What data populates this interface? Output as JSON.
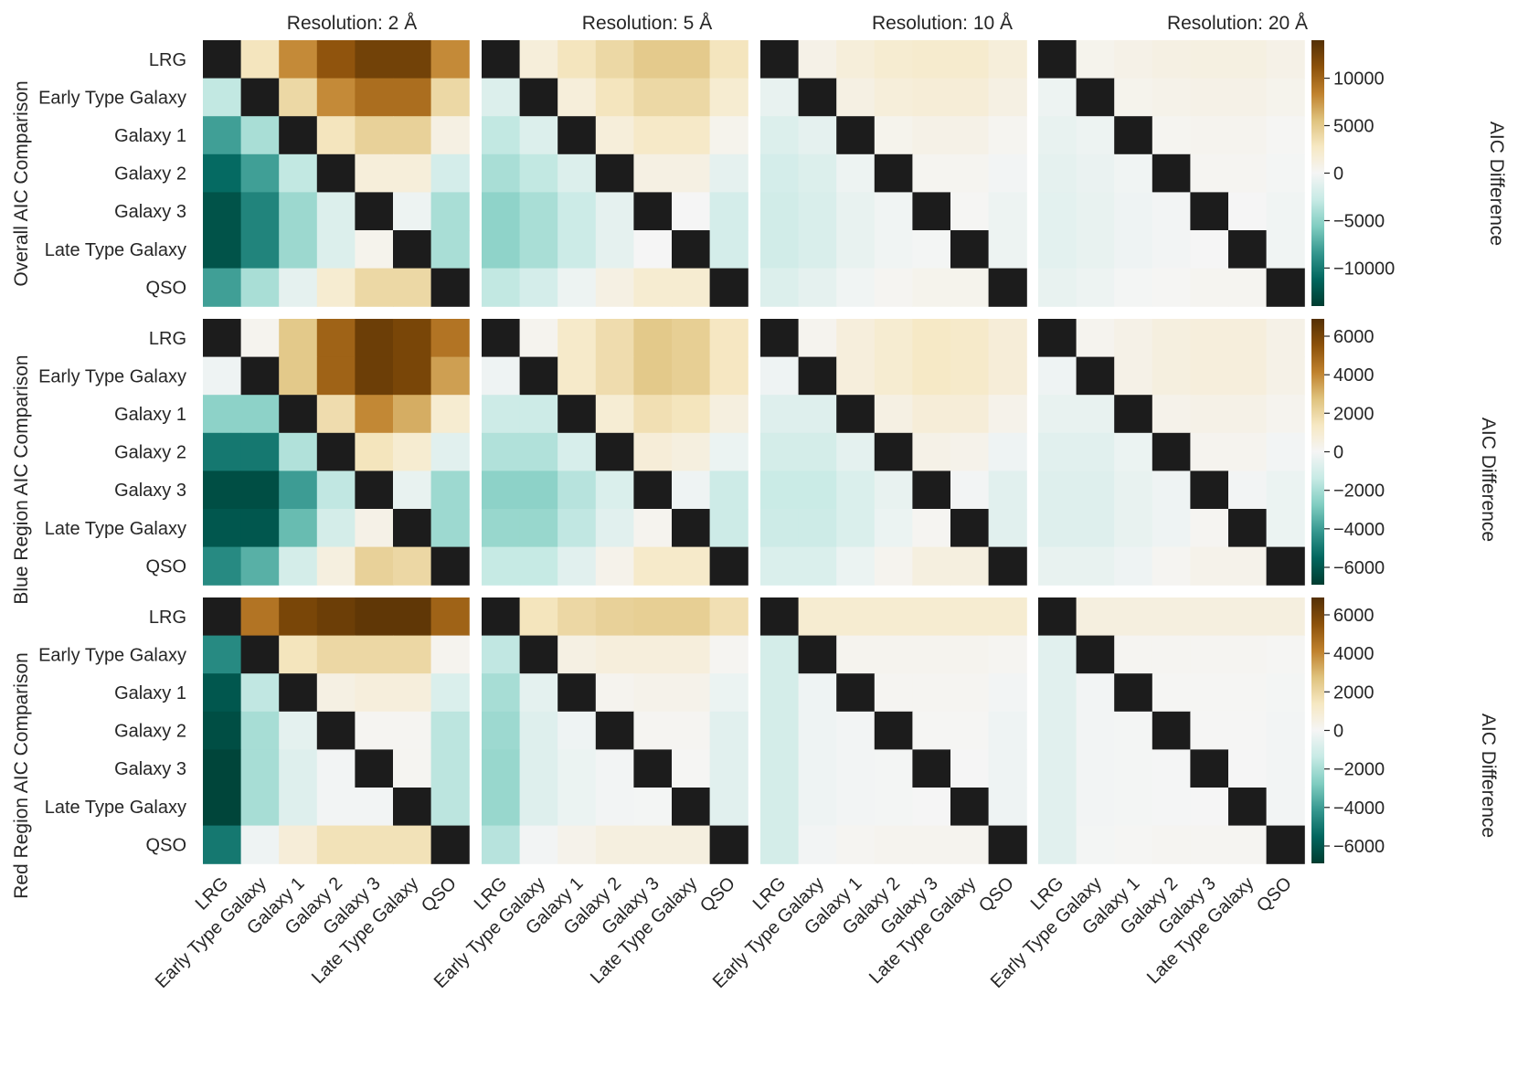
{
  "chart_data": {
    "type": "heatmap",
    "categories": [
      "LRG",
      "Early Type Galaxy",
      "Galaxy 1",
      "Galaxy 2",
      "Galaxy 3",
      "Late Type Galaxy",
      "QSO"
    ],
    "column_titles": [
      "Resolution: 2 Å",
      "Resolution: 5 Å",
      "Resolution: 10 Å",
      "Resolution: 20 Å"
    ],
    "row_titles": [
      "Overall AIC Comparison",
      "Blue Region AIC Comparison",
      "Red Region AIC Comparison"
    ],
    "colorbar_label": "AIC Difference",
    "colormap": "BrBG_r",
    "diagonal_color": "#1c1c1c",
    "colorbars": [
      {
        "vmin": -14000,
        "vmax": 14000,
        "ticks": [
          "10000",
          "5000",
          "0",
          "−5000",
          "−10000"
        ],
        "tick_values": [
          10000,
          5000,
          0,
          -5000,
          -10000
        ]
      },
      {
        "vmin": -6900,
        "vmax": 6900,
        "ticks": [
          "6000",
          "4000",
          "2000",
          "0",
          "−2000",
          "−4000",
          "−6000"
        ],
        "tick_values": [
          6000,
          4000,
          2000,
          0,
          -2000,
          -4000,
          -6000
        ]
      },
      {
        "vmin": -6900,
        "vmax": 6900,
        "ticks": [
          "6000",
          "4000",
          "2000",
          "0",
          "−2000",
          "−4000",
          "−6000"
        ],
        "tick_values": [
          6000,
          4000,
          2000,
          0,
          -2000,
          -4000,
          -6000
        ]
      }
    ],
    "matrices": [
      [
        [
          [
            0,
            3000,
            8000,
            11000,
            12500,
            12500,
            8000
          ],
          [
            -3000,
            0,
            4000,
            8000,
            9500,
            9500,
            4000
          ],
          [
            -8000,
            -4000,
            0,
            3000,
            4500,
            4500,
            1000
          ],
          [
            -11000,
            -8000,
            -3000,
            0,
            1500,
            1500,
            -2000
          ],
          [
            -12500,
            -9500,
            -4500,
            -1500,
            0,
            -500,
            -4000
          ],
          [
            -12500,
            -9500,
            -4500,
            -1500,
            500,
            0,
            -4000
          ],
          [
            -8000,
            -4000,
            -1000,
            2000,
            4000,
            4000,
            0
          ]
        ],
        [
          [
            0,
            1500,
            3000,
            4000,
            5000,
            5000,
            3000
          ],
          [
            -1500,
            0,
            1500,
            3000,
            4000,
            4000,
            2000
          ],
          [
            -3000,
            -1500,
            0,
            1500,
            2500,
            2500,
            500
          ],
          [
            -4000,
            -3000,
            -1500,
            0,
            1000,
            1000,
            -1000
          ],
          [
            -5000,
            -4000,
            -2500,
            -1000,
            0,
            0,
            -2000
          ],
          [
            -5000,
            -4000,
            -2500,
            -1000,
            0,
            0,
            -2000
          ],
          [
            -3000,
            -2000,
            -500,
            1000,
            2000,
            2000,
            0
          ]
        ],
        [
          [
            0,
            800,
            1500,
            2000,
            2200,
            2200,
            1500
          ],
          [
            -800,
            0,
            1000,
            1500,
            1700,
            1700,
            1000
          ],
          [
            -1500,
            -1000,
            0,
            500,
            800,
            800,
            300
          ],
          [
            -2000,
            -1500,
            -500,
            0,
            300,
            300,
            -200
          ],
          [
            -2200,
            -1700,
            -800,
            -300,
            0,
            100,
            -500
          ],
          [
            -2200,
            -1700,
            -800,
            -300,
            -100,
            0,
            -500
          ],
          [
            -1500,
            -1000,
            -300,
            200,
            500,
            500,
            0
          ]
        ],
        [
          [
            0,
            500,
            800,
            1000,
            1100,
            1100,
            800
          ],
          [
            -500,
            0,
            500,
            700,
            800,
            800,
            500
          ],
          [
            -800,
            -500,
            0,
            300,
            400,
            400,
            100
          ],
          [
            -1000,
            -700,
            -300,
            0,
            200,
            200,
            -100
          ],
          [
            -1100,
            -800,
            -400,
            -200,
            0,
            0,
            -300
          ],
          [
            -1100,
            -800,
            -400,
            -200,
            0,
            0,
            -300
          ],
          [
            -800,
            -500,
            -100,
            100,
            300,
            300,
            0
          ]
        ]
      ],
      [
        [
          [
            0,
            200,
            2500,
            5000,
            6300,
            6000,
            4500
          ],
          [
            -200,
            0,
            2500,
            5000,
            6300,
            6000,
            3500
          ],
          [
            -2500,
            -2500,
            0,
            1800,
            4000,
            3200,
            1000
          ],
          [
            -5000,
            -5000,
            -1800,
            0,
            1500,
            1000,
            -600
          ],
          [
            -6300,
            -6300,
            -4000,
            -1500,
            0,
            -400,
            -2200
          ],
          [
            -6000,
            -6000,
            -3200,
            -1000,
            400,
            0,
            -2200
          ],
          [
            -4500,
            -3500,
            -1000,
            600,
            2200,
            2000,
            0
          ]
        ],
        [
          [
            0,
            200,
            1200,
            1800,
            2500,
            2300,
            1400
          ],
          [
            -200,
            0,
            1200,
            1800,
            2500,
            2300,
            1400
          ],
          [
            -1200,
            -1200,
            0,
            900,
            1700,
            1500,
            600
          ],
          [
            -1800,
            -1800,
            -900,
            0,
            800,
            600,
            -300
          ],
          [
            -2500,
            -2500,
            -1700,
            -800,
            0,
            -200,
            -1200
          ],
          [
            -2300,
            -2300,
            -1500,
            -600,
            200,
            0,
            -1200
          ],
          [
            -1400,
            -1400,
            -600,
            300,
            1200,
            1200,
            0
          ]
        ],
        [
          [
            0,
            200,
            700,
            1000,
            1300,
            1200,
            800
          ],
          [
            -200,
            0,
            700,
            1000,
            1300,
            1200,
            800
          ],
          [
            -700,
            -700,
            0,
            500,
            800,
            800,
            300
          ],
          [
            -1000,
            -1000,
            -500,
            0,
            400,
            300,
            -200
          ],
          [
            -1300,
            -1300,
            -800,
            -400,
            0,
            -100,
            -600
          ],
          [
            -1200,
            -1200,
            -800,
            -300,
            100,
            0,
            -600
          ],
          [
            -800,
            -800,
            -300,
            200,
            600,
            600,
            0
          ]
        ],
        [
          [
            0,
            200,
            400,
            600,
            700,
            700,
            400
          ],
          [
            -200,
            0,
            400,
            600,
            700,
            700,
            400
          ],
          [
            -400,
            -400,
            0,
            300,
            400,
            400,
            200
          ],
          [
            -600,
            -600,
            -300,
            0,
            200,
            200,
            -100
          ],
          [
            -700,
            -700,
            -400,
            -200,
            0,
            -100,
            -300
          ],
          [
            -700,
            -700,
            -400,
            -200,
            100,
            0,
            -300
          ],
          [
            -400,
            -400,
            -200,
            100,
            300,
            300,
            0
          ]
        ]
      ],
      [
        [
          [
            0,
            4500,
            6000,
            6300,
            6600,
            6600,
            5000
          ],
          [
            -4500,
            0,
            1500,
            2000,
            2000,
            2000,
            200
          ],
          [
            -6000,
            -1500,
            0,
            500,
            700,
            700,
            -800
          ],
          [
            -6300,
            -2000,
            -500,
            0,
            100,
            100,
            -1600
          ],
          [
            -6600,
            -2000,
            -700,
            -100,
            0,
            100,
            -1600
          ],
          [
            -6600,
            -2000,
            -700,
            -100,
            -100,
            0,
            -1600
          ],
          [
            -5000,
            -200,
            800,
            1600,
            1600,
            1600,
            0
          ]
        ],
        [
          [
            0,
            1500,
            2000,
            2200,
            2300,
            2300,
            1700
          ],
          [
            -1500,
            0,
            500,
            700,
            700,
            700,
            100
          ],
          [
            -2000,
            -500,
            0,
            200,
            300,
            300,
            -300
          ],
          [
            -2200,
            -700,
            -200,
            0,
            100,
            100,
            -600
          ],
          [
            -2300,
            -700,
            -300,
            -100,
            0,
            50,
            -600
          ],
          [
            -2300,
            -700,
            -300,
            -100,
            -50,
            0,
            -600
          ],
          [
            -1700,
            -100,
            300,
            600,
            600,
            600,
            0
          ]
        ],
        [
          [
            0,
            1000,
            1000,
            1000,
            1000,
            1000,
            1000
          ],
          [
            -1000,
            0,
            200,
            200,
            200,
            200,
            100
          ],
          [
            -1000,
            -200,
            0,
            100,
            100,
            100,
            -100
          ],
          [
            -1000,
            -200,
            -100,
            0,
            50,
            50,
            -200
          ],
          [
            -1000,
            -200,
            -100,
            -50,
            0,
            0,
            -200
          ],
          [
            -1000,
            -200,
            -100,
            -50,
            0,
            0,
            -200
          ],
          [
            -1000,
            -100,
            100,
            200,
            200,
            200,
            0
          ]
        ],
        [
          [
            0,
            600,
            600,
            600,
            600,
            600,
            600
          ],
          [
            -600,
            0,
            100,
            100,
            100,
            100,
            50
          ],
          [
            -600,
            -100,
            0,
            50,
            50,
            50,
            -50
          ],
          [
            -600,
            -100,
            -50,
            0,
            20,
            20,
            -100
          ],
          [
            -600,
            -100,
            -50,
            -20,
            0,
            0,
            -100
          ],
          [
            -600,
            -100,
            -50,
            -20,
            0,
            0,
            -100
          ],
          [
            -600,
            -50,
            50,
            100,
            100,
            100,
            0
          ]
        ]
      ]
    ]
  }
}
